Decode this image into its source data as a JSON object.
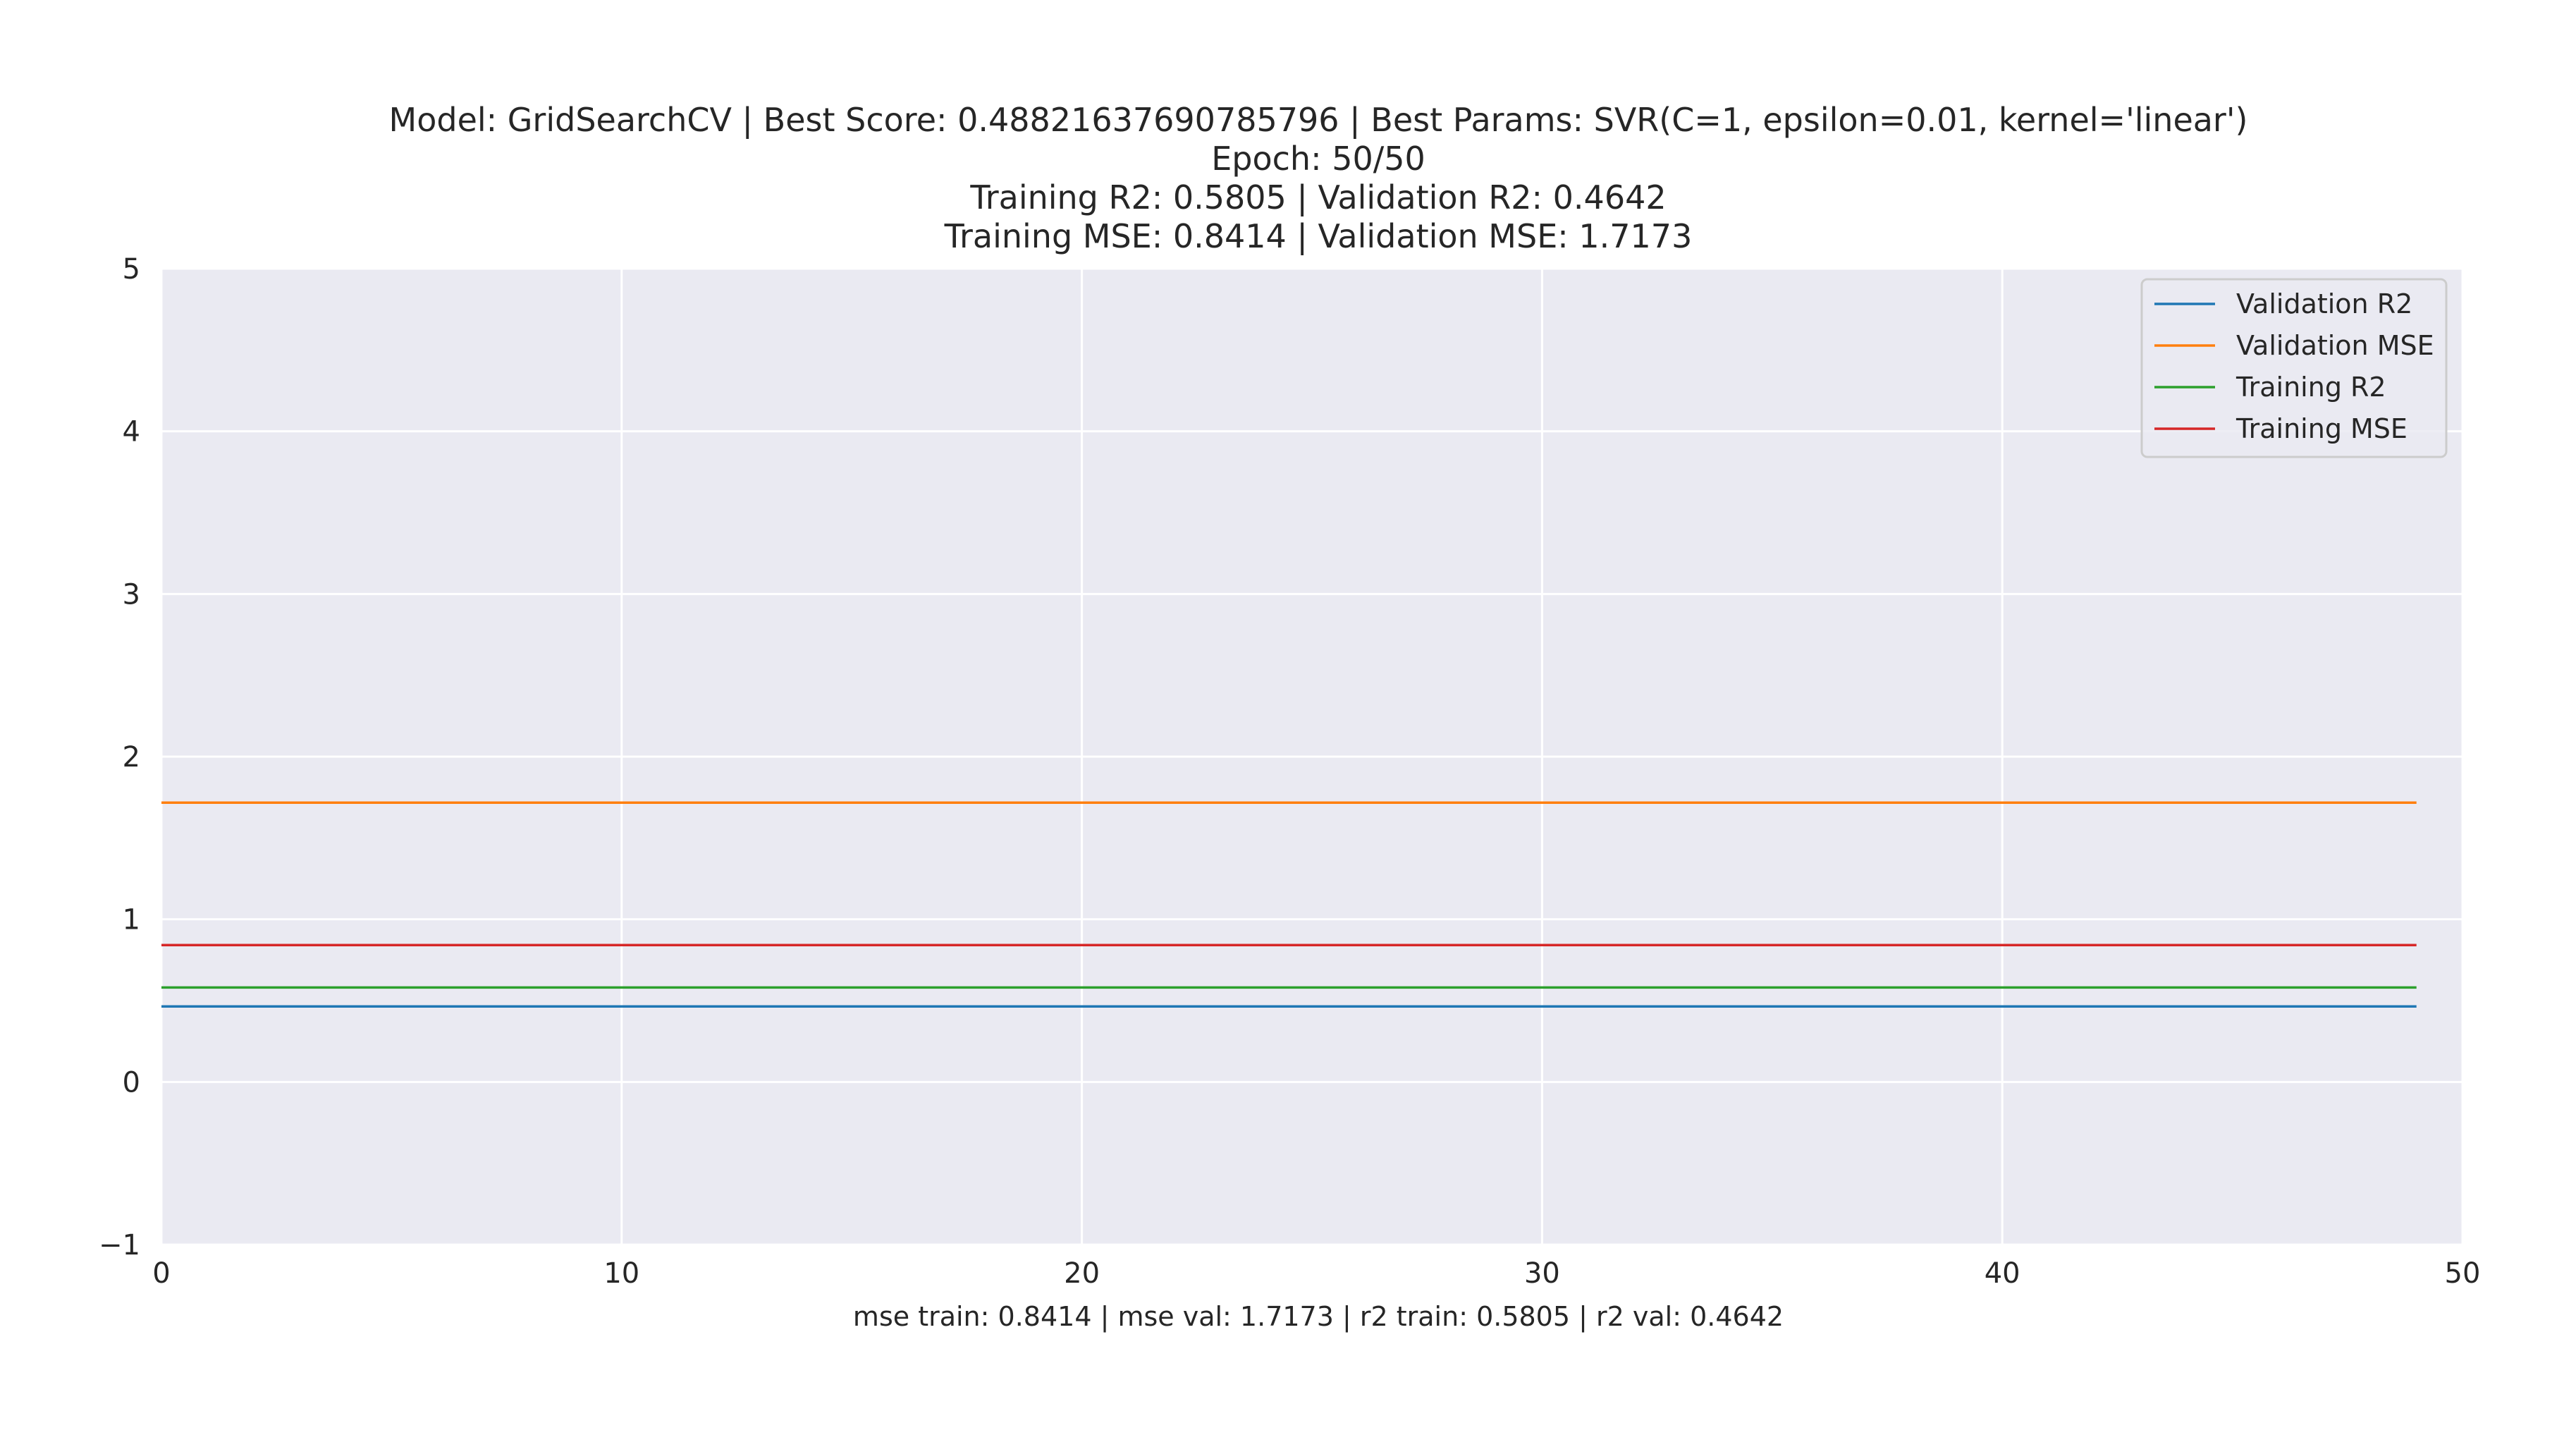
{
  "chart_data": {
    "type": "line",
    "title_lines": [
      "Model: GridSearchCV | Best Score: 0.48821637690785796 | Best Params: SVR(C=1, epsilon=0.01, kernel='linear')",
      "Epoch: 50/50",
      "Training R2: 0.5805 | Validation R2: 0.4642",
      "Training MSE: 0.8414 | Validation MSE: 1.7173"
    ],
    "xlabel": "mse train: 0.8414 | mse val: 1.7173 | r2 train: 0.5805 | r2 val: 0.4642",
    "ylabel": "",
    "xlim": [
      0,
      50
    ],
    "ylim": [
      -1,
      5
    ],
    "x_ticks": [
      0,
      10,
      20,
      30,
      40,
      50
    ],
    "x_tick_labels": [
      "0",
      "10",
      "20",
      "30",
      "40",
      "50"
    ],
    "y_ticks": [
      -1,
      0,
      1,
      2,
      3,
      4,
      5
    ],
    "y_tick_labels": [
      "−1",
      "0",
      "1",
      "2",
      "3",
      "4",
      "5"
    ],
    "x_range": [
      0,
      49
    ],
    "grid": true,
    "legend_position": "upper right",
    "background_color": "#eaeaf2",
    "grid_color": "#ffffff",
    "series": [
      {
        "name": "Validation R2",
        "color": "#1f77b4",
        "x": [
          0,
          49
        ],
        "y": [
          0.4642,
          0.4642
        ]
      },
      {
        "name": "Validation MSE",
        "color": "#ff7f0e",
        "x": [
          0,
          49
        ],
        "y": [
          1.7173,
          1.7173
        ]
      },
      {
        "name": "Training R2",
        "color": "#2ca02c",
        "x": [
          0,
          49
        ],
        "y": [
          0.5805,
          0.5805
        ]
      },
      {
        "name": "Training MSE",
        "color": "#d62728",
        "x": [
          0,
          49
        ],
        "y": [
          0.8414,
          0.8414
        ]
      }
    ]
  }
}
